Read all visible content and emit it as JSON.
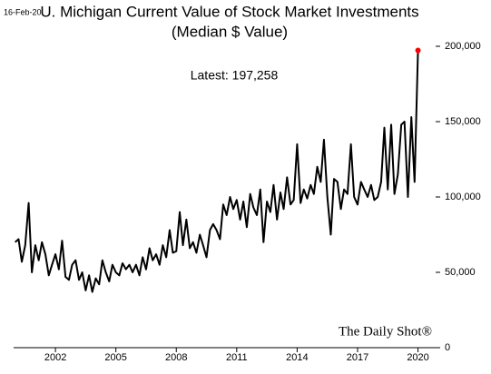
{
  "chart_data": {
    "type": "line",
    "date_stamp": "16-Feb-20",
    "title": "U. Michigan Current Value of Stock Market Investments",
    "subtitle": "(Median $ Value)",
    "annotation": "Latest:  197,258",
    "watermark": "The Daily Shot®",
    "x": [
      2000,
      2000.17,
      2000.33,
      2000.5,
      2000.67,
      2000.83,
      2001,
      2001.17,
      2001.33,
      2001.5,
      2001.67,
      2001.83,
      2002,
      2002.17,
      2002.33,
      2002.5,
      2002.67,
      2002.83,
      2003,
      2003.17,
      2003.33,
      2003.5,
      2003.67,
      2003.83,
      2004,
      2004.17,
      2004.33,
      2004.5,
      2004.67,
      2004.83,
      2005,
      2005.17,
      2005.33,
      2005.5,
      2005.67,
      2005.83,
      2006,
      2006.17,
      2006.33,
      2006.5,
      2006.67,
      2006.83,
      2007,
      2007.17,
      2007.33,
      2007.5,
      2007.67,
      2007.83,
      2008,
      2008.17,
      2008.33,
      2008.5,
      2008.67,
      2008.83,
      2009,
      2009.17,
      2009.33,
      2009.5,
      2009.67,
      2009.83,
      2010,
      2010.17,
      2010.33,
      2010.5,
      2010.67,
      2010.83,
      2011,
      2011.17,
      2011.33,
      2011.5,
      2011.67,
      2011.83,
      2012,
      2012.17,
      2012.33,
      2012.5,
      2012.67,
      2012.83,
      2013,
      2013.17,
      2013.33,
      2013.5,
      2013.67,
      2013.83,
      2014,
      2014.17,
      2014.33,
      2014.5,
      2014.67,
      2014.83,
      2015,
      2015.17,
      2015.33,
      2015.5,
      2015.67,
      2015.83,
      2016,
      2016.17,
      2016.33,
      2016.5,
      2016.67,
      2016.83,
      2017,
      2017.17,
      2017.33,
      2017.5,
      2017.67,
      2017.83,
      2018,
      2018.17,
      2018.33,
      2018.5,
      2018.67,
      2018.83,
      2019,
      2019.17,
      2019.33,
      2019.5,
      2019.67,
      2019.83,
      2020
    ],
    "series": [
      {
        "name": "Median $ Value",
        "color": "#000000",
        "values": [
          70000,
          72000,
          57000,
          68000,
          96000,
          50000,
          68000,
          58000,
          70000,
          62000,
          48000,
          55000,
          62000,
          52000,
          71000,
          47000,
          45000,
          55000,
          58000,
          45000,
          50000,
          38000,
          48000,
          37000,
          46000,
          42000,
          58000,
          50000,
          44000,
          55000,
          50000,
          48000,
          56000,
          52000,
          55000,
          50000,
          55000,
          48000,
          60000,
          52000,
          66000,
          58000,
          62000,
          55000,
          68000,
          60000,
          78000,
          63000,
          64000,
          90000,
          68000,
          85000,
          66000,
          70000,
          63000,
          75000,
          68000,
          60000,
          78000,
          82000,
          78000,
          72000,
          95000,
          88000,
          100000,
          92000,
          98000,
          85000,
          97000,
          80000,
          102000,
          93000,
          88000,
          105000,
          70000,
          97000,
          90000,
          108000,
          85000,
          103000,
          92000,
          113000,
          95000,
          98000,
          135000,
          96000,
          105000,
          99000,
          108000,
          102000,
          120000,
          110000,
          138000,
          100000,
          75000,
          112000,
          110000,
          92000,
          105000,
          102000,
          135000,
          100000,
          95000,
          110000,
          105000,
          100000,
          108000,
          98000,
          100000,
          110000,
          146000,
          105000,
          148000,
          102000,
          115000,
          148000,
          150000,
          100000,
          153000,
          110000,
          197258
        ]
      }
    ],
    "last_point_color": "#ff0000",
    "xlim": [
      2000,
      2020.2
    ],
    "xticks": [
      2002,
      2005,
      2008,
      2011,
      2014,
      2017,
      2020
    ],
    "ylim": [
      0,
      200000
    ],
    "yticks": [
      0,
      {
        "value": 50000,
        "label": "50,000"
      },
      {
        "value": 100000,
        "label": "100,000"
      },
      {
        "value": 150000,
        "label": "150,000"
      },
      {
        "value": 200000,
        "label": "200,000"
      }
    ],
    "grid": false
  }
}
